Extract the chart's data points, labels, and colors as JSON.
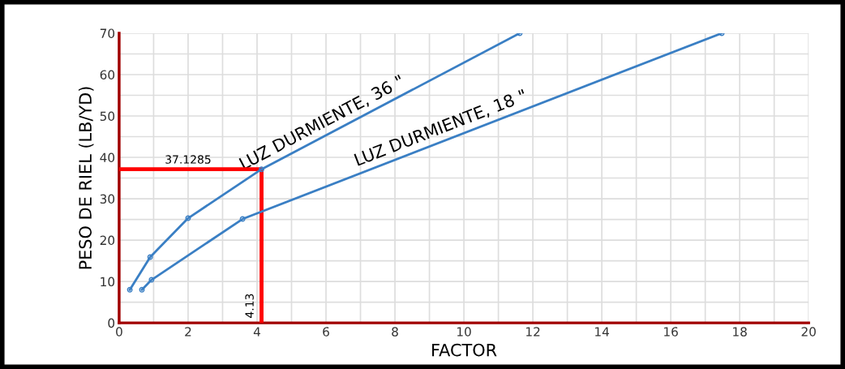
{
  "chart_data": {
    "type": "line",
    "xlabel": "FACTOR",
    "ylabel": "PESO DE RIEL (LB/YD)",
    "xlim": [
      0,
      20
    ],
    "ylim": [
      0,
      70
    ],
    "xticks": [
      0,
      {
        "value": 1,
        "label": null
      },
      2,
      {
        "value": 3,
        "label": null
      },
      4,
      {
        "value": 5,
        "label": null
      },
      6,
      {
        "value": 7,
        "label": null
      },
      8,
      {
        "value": 9,
        "label": null
      },
      10,
      {
        "value": 11,
        "label": null
      },
      12,
      {
        "value": 13,
        "label": null
      },
      14,
      {
        "value": 15,
        "label": null
      },
      16,
      {
        "value": 17,
        "label": null
      },
      18,
      {
        "value": 19,
        "label": null
      },
      20
    ],
    "yticks": [
      0,
      {
        "value": 5,
        "label": null
      },
      10,
      {
        "value": 15,
        "label": null
      },
      20,
      {
        "value": 25,
        "label": null
      },
      30,
      {
        "value": 35,
        "label": null
      },
      40,
      {
        "value": 45,
        "label": null
      },
      50,
      {
        "value": 55,
        "label": null
      },
      60,
      {
        "value": 65,
        "label": null
      },
      70
    ],
    "grid": true,
    "legend": false,
    "marker": "circle",
    "line_style": "solid",
    "series": [
      {
        "name": "LUZ DURMIENTE, 36 \"",
        "color": "#3a7fc4",
        "x": [
          0.31,
          0.9,
          2.0,
          4.13,
          11.62
        ],
        "values": [
          8,
          15.9,
          25.3,
          37.1285,
          70
        ]
      },
      {
        "name": "LUZ DURMIENTE, 18 \"",
        "color": "#3a7fc4",
        "x": [
          0.66,
          0.94,
          3.58,
          17.48
        ],
        "values": [
          8,
          10.4,
          25.1,
          70
        ]
      },
      {
        "color": "#ff0000",
        "marker": "none",
        "x": [
          0,
          4.13,
          4.13
        ],
        "values": [
          37.1285,
          37.1285,
          0
        ]
      }
    ],
    "annotations": [
      {
        "text": "37.1285",
        "x": 2,
        "y": 37.1285
      },
      {
        "text": "4.13",
        "x": 4.13,
        "y": 0
      }
    ]
  }
}
